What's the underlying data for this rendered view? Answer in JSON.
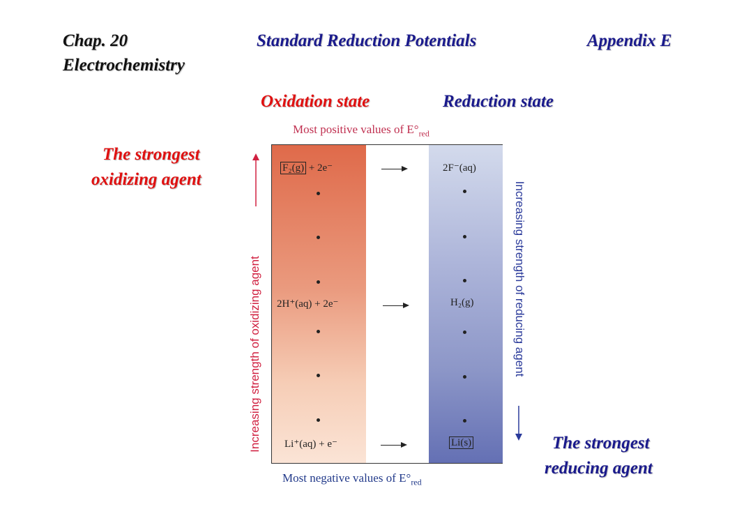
{
  "header": {
    "chapter": "Chap. 20",
    "subject": "Electrochemistry",
    "title": "Standard Reduction Potentials",
    "appendix": "Appendix E"
  },
  "column_labels": {
    "oxidation": "Oxidation state",
    "reduction": "Reduction state"
  },
  "side_labels": {
    "oxidizing_1": "The strongest",
    "oxidizing_2": "oxidizing agent",
    "reducing_1": "The strongest",
    "reducing_2": "reducing agent"
  },
  "diagram": {
    "top_caption": "Most positive values of E°",
    "bottom_caption": "Most negative values of E°",
    "subscript": "red",
    "left_axis": "Increasing strength of oxidizing agent",
    "right_axis": "Increasing strength of reducing agent",
    "reactions": [
      {
        "left": "F₂(g)",
        "left_rest": " + 2e⁻",
        "right": "2F⁻(aq)"
      },
      {
        "left": "2H⁺(aq) + 2e⁻",
        "right": "H₂(g)"
      },
      {
        "left": "Li⁺(aq) + e⁻",
        "right": "Li(s)"
      }
    ]
  },
  "colors": {
    "oxidation_top": "#e07050",
    "oxidation_bottom": "#fbe0d2",
    "reduction_top": "#cdd4ea",
    "reduction_bottom": "#6470b4",
    "red_text": "#e01010",
    "blue_text": "#1a1a8c"
  }
}
